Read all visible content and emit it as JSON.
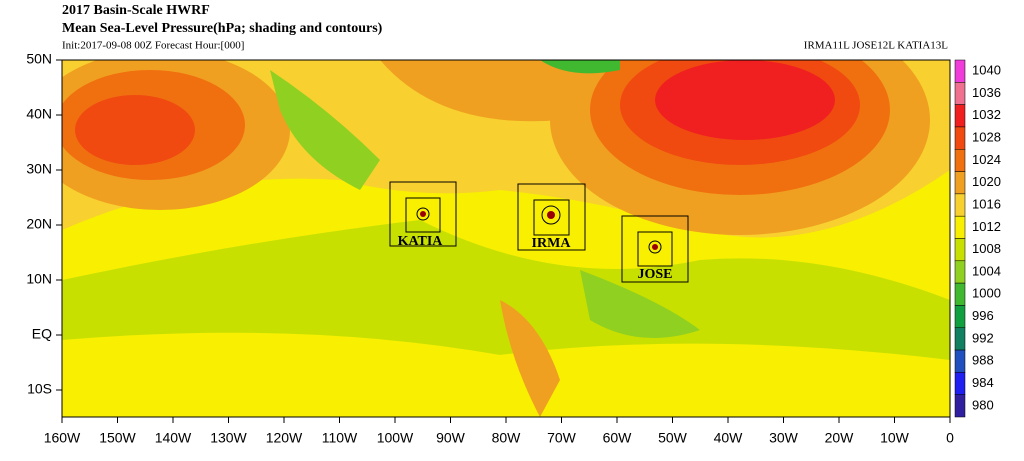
{
  "header": {
    "title": "2017 Basin-Scale HWRF",
    "subtitle": "Mean Sea-Level Pressure(hPa; shading and contours)",
    "init": "Init:2017-09-08 00Z Forecast Hour:[000]",
    "storms": "IRMA11L JOSE12L KATIA13L"
  },
  "map": {
    "lat_labels": [
      "50N",
      "40N",
      "30N",
      "20N",
      "10N",
      "EQ",
      "10S"
    ],
    "lon_labels": [
      "160W",
      "150W",
      "140W",
      "130W",
      "120W",
      "110W",
      "100W",
      "90W",
      "80W",
      "70W",
      "60W",
      "50W",
      "40W",
      "30W",
      "20W",
      "10W",
      "0"
    ],
    "storm_labels": [
      "KATIA",
      "IRMA",
      "JOSE"
    ]
  },
  "colorbar": {
    "levels": [
      {
        "label": "1040",
        "color": "#f03cd8"
      },
      {
        "label": "1036",
        "color": "#f07090"
      },
      {
        "label": "1032",
        "color": "#f02020"
      },
      {
        "label": "1028",
        "color": "#f04a10"
      },
      {
        "label": "1024",
        "color": "#f07010"
      },
      {
        "label": "1020",
        "color": "#f0a020"
      },
      {
        "label": "1016",
        "color": "#f8d030"
      },
      {
        "label": "1012",
        "color": "#f8f000"
      },
      {
        "label": "1008",
        "color": "#c8e000"
      },
      {
        "label": "1004",
        "color": "#90d020"
      },
      {
        "label": "1000",
        "color": "#40b830"
      },
      {
        "label": "996",
        "color": "#10a040"
      },
      {
        "label": "992",
        "color": "#108060"
      },
      {
        "label": "988",
        "color": "#2050c0"
      },
      {
        "label": "984",
        "color": "#2020f0"
      },
      {
        "label": "980",
        "color": "#3020a0"
      }
    ]
  }
}
